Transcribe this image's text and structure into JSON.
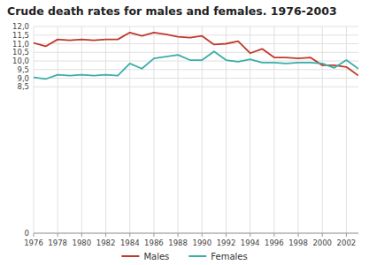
{
  "chart_data": {
    "type": "line",
    "title": "Crude death rates for males and females. 1976-2003",
    "x": [
      1976,
      1977,
      1978,
      1979,
      1980,
      1981,
      1982,
      1983,
      1984,
      1985,
      1986,
      1987,
      1988,
      1989,
      1990,
      1991,
      1992,
      1993,
      1994,
      1995,
      1996,
      1997,
      1998,
      1999,
      2000,
      2001,
      2002,
      2003
    ],
    "series": [
      {
        "name": "Males",
        "color": "#c0392b",
        "values": [
          11.05,
          10.85,
          11.25,
          11.2,
          11.25,
          11.2,
          11.25,
          11.25,
          11.65,
          11.45,
          11.65,
          11.55,
          11.4,
          11.35,
          11.45,
          10.95,
          11.0,
          11.15,
          10.45,
          10.7,
          10.2,
          10.2,
          10.15,
          10.2,
          9.75,
          9.75,
          9.65,
          9.15
        ]
      },
      {
        "name": "Females",
        "color": "#3aada8",
        "values": [
          9.05,
          8.95,
          9.2,
          9.15,
          9.2,
          9.15,
          9.2,
          9.15,
          9.85,
          9.55,
          10.15,
          10.25,
          10.35,
          10.05,
          10.05,
          10.55,
          10.05,
          9.95,
          10.1,
          9.9,
          9.9,
          9.85,
          9.9,
          9.9,
          9.85,
          9.6,
          10.05,
          9.55
        ]
      }
    ],
    "xlim": [
      1976,
      2003
    ],
    "xticks": [
      1976,
      1978,
      1980,
      1982,
      1984,
      1986,
      1988,
      1990,
      1992,
      1994,
      1996,
      1998,
      2000,
      2002
    ],
    "ylim": [
      0,
      12.0
    ],
    "yticks": [
      0,
      {
        "value": 8.5,
        "label": "8,5"
      },
      {
        "value": 9.0,
        "label": "9,0"
      },
      {
        "value": 9.5,
        "label": "9,5"
      },
      {
        "value": 10.0,
        "label": "10,0"
      },
      {
        "value": 10.5,
        "label": "10,5"
      },
      {
        "value": 11.0,
        "label": "11,0"
      },
      {
        "value": 11.5,
        "label": "11,5"
      },
      {
        "value": 12.0,
        "label": "12,0"
      }
    ],
    "grid": true,
    "legend": "bottom"
  }
}
